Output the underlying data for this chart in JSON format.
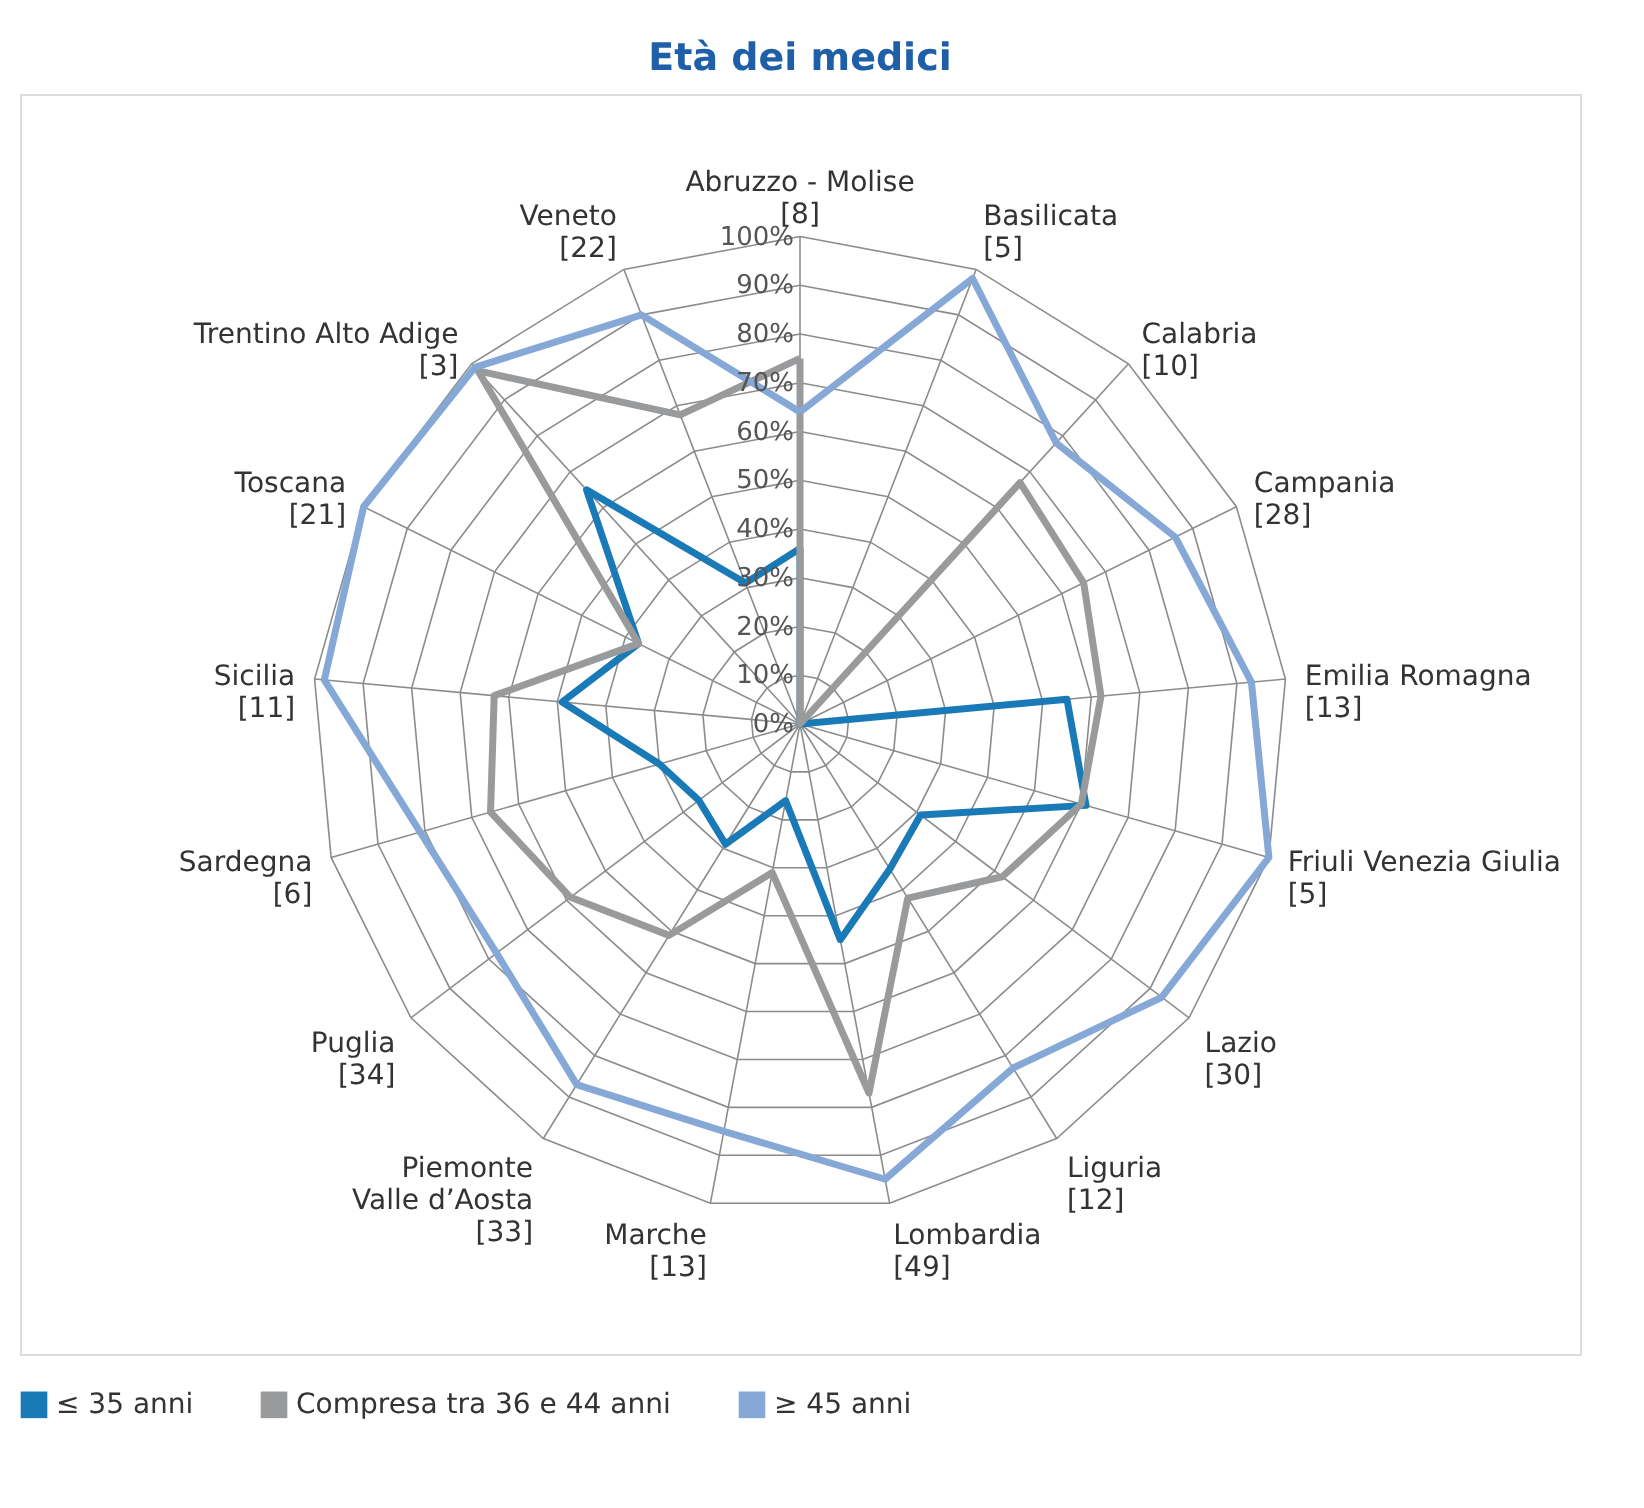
{
  "chart_data": {
    "type": "radar",
    "title": "Età dei medici",
    "categories": [
      "Abruzzo - Molise\n[8]",
      "Basilicata\n[5]",
      "Calabria\n[10]",
      "Campania\n[28]",
      "Emilia Romagna\n[13]",
      "Friuli Venezia Giulia\n[5]",
      "Lazio\n[30]",
      "Liguria\n[12]",
      "Lombardia\n[49]",
      "Marche\n[13]",
      "Piemonte\nValle d’Aosta\n[33]",
      "Puglia\n[34]",
      "Sardegna\n[6]",
      "Sicilia\n[11]",
      "Toscana\n[21]",
      "Trentino Alto Adige\n[3]",
      "Veneto\n[22]"
    ],
    "series": [
      {
        "name": "≤ 35 anni",
        "color": "#1a7ab8",
        "values": [
          36,
          0,
          0,
          0,
          55,
          61,
          31,
          35,
          45,
          16,
          29,
          26,
          30,
          49,
          37,
          65,
          31
        ]
      },
      {
        "name": "Compresa tra 36 e 44 anni",
        "color": "#999a9c",
        "values": [
          75,
          0,
          67,
          65,
          62,
          60,
          52,
          42,
          77,
          31,
          51,
          59,
          66,
          63,
          37,
          98,
          68
        ]
      },
      {
        "name": "≥ 45 anni",
        "color": "#86a8d6",
        "values": [
          64,
          98,
          78,
          86,
          93,
          100,
          93,
          83,
          95,
          85,
          87,
          78,
          81,
          98,
          100,
          99,
          90
        ]
      }
    ],
    "ylim": [
      0,
      100
    ],
    "yticks": [
      {
        "value": 0,
        "label": "0%"
      },
      {
        "value": 10,
        "label": "10%"
      },
      {
        "value": 20,
        "label": "20%"
      },
      {
        "value": 30,
        "label": "30%"
      },
      {
        "value": 40,
        "label": "40%"
      },
      {
        "value": 50,
        "label": "50%"
      },
      {
        "value": 60,
        "label": "60%"
      },
      {
        "value": 70,
        "label": "70%"
      },
      {
        "value": 80,
        "label": "80%"
      },
      {
        "value": 90,
        "label": "90%"
      },
      {
        "value": 100,
        "label": "100%"
      }
    ],
    "grid": true,
    "legend": "bottom"
  }
}
